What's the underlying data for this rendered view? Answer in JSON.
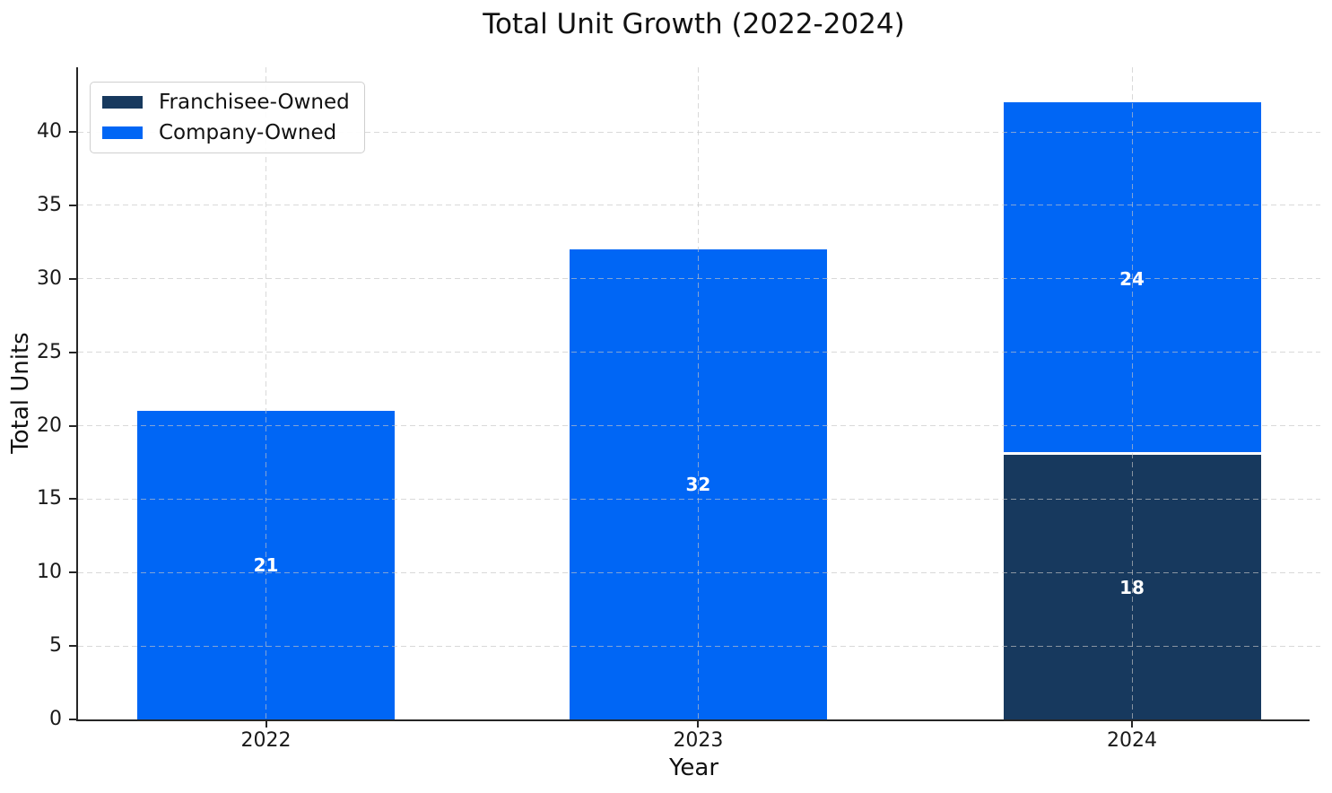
{
  "chart_data": {
    "type": "bar",
    "stacked": true,
    "title": "Total Unit Growth (2022-2024)",
    "xlabel": "Year",
    "ylabel": "Total Units",
    "categories": [
      "2022",
      "2023",
      "2024"
    ],
    "series": [
      {
        "name": "Franchisee-Owned",
        "color": "#17395e",
        "values": [
          0,
          0,
          18
        ]
      },
      {
        "name": "Company-Owned",
        "color": "#0066f5",
        "values": [
          21,
          32,
          24
        ]
      }
    ],
    "bar_value_labels": {
      "Franchisee-Owned": [
        "",
        "",
        "18"
      ],
      "Company-Owned": [
        "21",
        "32",
        "24"
      ]
    },
    "value_label_color": "#ffffff",
    "segment_separator_color": "#ffffff",
    "ylim": [
      0,
      44.4
    ],
    "yticks": [
      0,
      5,
      10,
      15,
      20,
      25,
      30,
      35,
      40
    ],
    "grid": {
      "axis": "both",
      "style": "dashed",
      "color": "#c5c5c5",
      "over_bars": true
    },
    "legend": {
      "position": "upper-left",
      "entries": [
        "Franchisee-Owned",
        "Company-Owned"
      ]
    },
    "background": "#ffffff"
  }
}
